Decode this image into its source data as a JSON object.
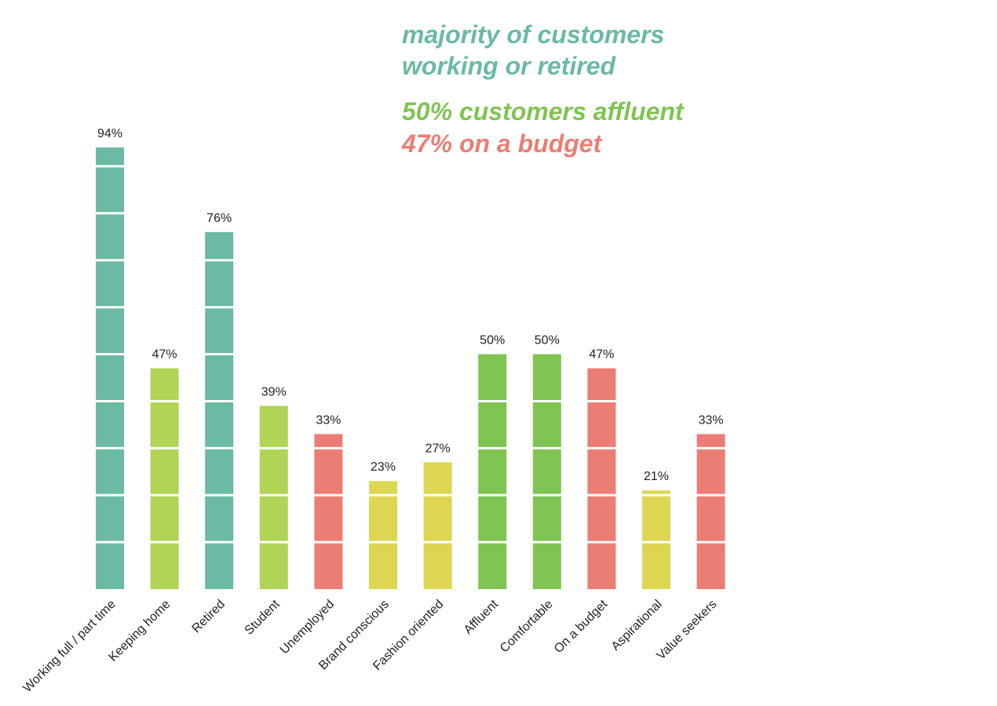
{
  "headlines": {
    "main_line1": "majority of customers",
    "main_line2": "working or retired",
    "affluent": "50% customers affluent",
    "budget": "47% on a budget"
  },
  "colors": {
    "teal": "#6bbaa3",
    "lime": "#b0d456",
    "red": "#ec7d74",
    "yellow": "#dcd653",
    "green": "#80c453",
    "text": "#222222"
  },
  "chart_data": {
    "type": "bar",
    "categories": [
      "Working full / part time",
      "Keeping home",
      "Retired",
      "Student",
      "Unemployed",
      "Brand  conscious",
      "Fashion oriented",
      "Affluent",
      "Comfortable",
      "On a budget",
      "Aspirational",
      "Value seekers"
    ],
    "values": [
      94,
      47,
      76,
      39,
      33,
      23,
      27,
      50,
      50,
      47,
      21,
      33
    ],
    "value_labels": [
      "94%",
      "47%",
      "76%",
      "39%",
      "33%",
      "23%",
      "27%",
      "50%",
      "50%",
      "47%",
      "21%",
      "33%"
    ],
    "bar_colors": [
      "teal",
      "lime",
      "teal",
      "lime",
      "red",
      "yellow",
      "yellow",
      "green",
      "green",
      "red",
      "yellow",
      "red"
    ],
    "segment_boundaries": [
      10,
      20,
      30,
      40,
      50,
      60,
      70,
      80,
      90
    ],
    "ylim": [
      0,
      100
    ],
    "grid": false,
    "legend": "none"
  }
}
